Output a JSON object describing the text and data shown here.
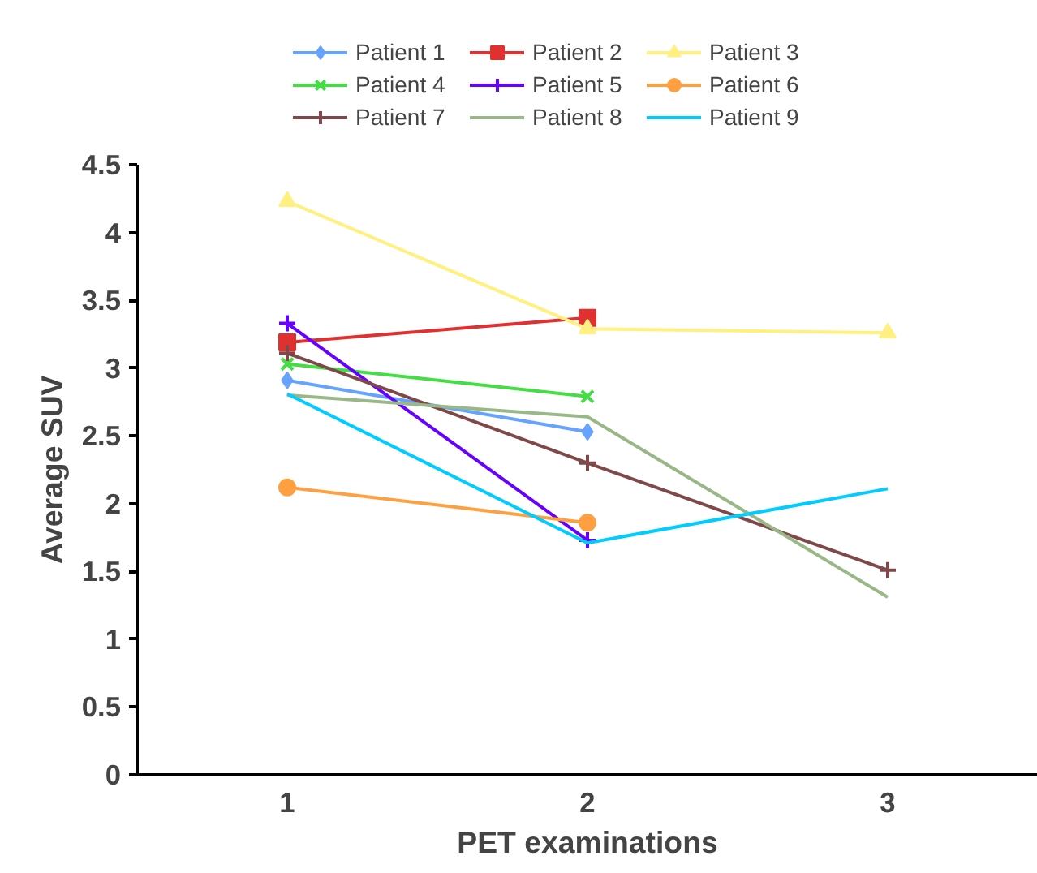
{
  "chart_data": {
    "type": "line",
    "xlabel": "PET examinations",
    "ylabel": "Average SUV",
    "categories": [
      "1",
      "2",
      "3"
    ],
    "ylim": [
      0,
      4.5
    ],
    "yticks": [
      0,
      0.5,
      1,
      1.5,
      2,
      2.5,
      3,
      3.5,
      4,
      4.5
    ],
    "grid": false,
    "legend": "top",
    "series": [
      {
        "name": "Patient 1",
        "color": "#66a3ff",
        "marker": "diamond",
        "values": [
          2.91,
          2.53,
          null
        ]
      },
      {
        "name": "Patient 2",
        "color": "#e03030",
        "marker": "square",
        "values": [
          3.19,
          3.37,
          null
        ]
      },
      {
        "name": "Patient 3",
        "color": "#fff080",
        "marker": "triangle",
        "values": [
          4.23,
          3.29,
          3.26
        ]
      },
      {
        "name": "Patient 4",
        "color": "#44dd44",
        "marker": "x",
        "values": [
          3.03,
          2.79,
          null
        ]
      },
      {
        "name": "Patient 5",
        "color": "#6600ff",
        "marker": "cross",
        "values": [
          3.33,
          1.73,
          null
        ]
      },
      {
        "name": "Patient 6",
        "color": "#ffa040",
        "marker": "circle",
        "values": [
          2.12,
          1.86,
          null
        ]
      },
      {
        "name": "Patient 7",
        "color": "#804848",
        "marker": "cross",
        "values": [
          3.11,
          2.3,
          1.51
        ]
      },
      {
        "name": "Patient 8",
        "color": "#99b888",
        "marker": "none",
        "values": [
          2.8,
          2.64,
          1.31
        ]
      },
      {
        "name": "Patient 9",
        "color": "#00ccff",
        "marker": "none",
        "values": [
          2.81,
          1.71,
          2.11
        ]
      }
    ]
  }
}
